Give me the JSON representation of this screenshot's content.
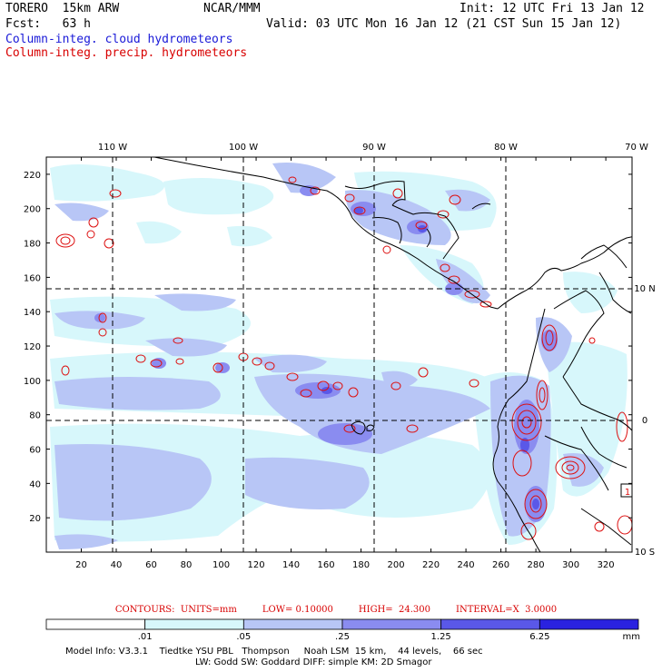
{
  "header": {
    "model": "TORERO  15km ARW",
    "org": "NCAR/MMM",
    "init": "Init: 12 UTC Fri 13 Jan 12",
    "fcst": "Fcst:   63 h",
    "valid": "Valid: 03 UTC Mon 16 Jan 12 (21 CST Sun 15 Jan 12)",
    "field1": "Column-integ. cloud hydrometeors",
    "field2": "Column-integ. precip. hydrometeors"
  },
  "colors": {
    "cloud_text": "#1a1ad8",
    "precip_text": "#d80000",
    "shade_levels": [
      "#ffffff",
      "#d7f7fb",
      "#b8c6f6",
      "#8a8cf0",
      "#5a58e8",
      "#2a22e0"
    ],
    "contour": "#dd1010"
  },
  "axes": {
    "top_lon_labels": [
      "110 W",
      "100 W",
      "90 W",
      "80 W",
      "70 W"
    ],
    "right_lat_labels": [
      "10 N",
      "0",
      "10 S"
    ],
    "left_y_labels": [
      "220",
      "200",
      "180",
      "160",
      "140",
      "120",
      "100",
      "80",
      "60",
      "40",
      "20"
    ],
    "bottom_x_labels": [
      "20",
      "40",
      "60",
      "80",
      "100",
      "120",
      "140",
      "160",
      "180",
      "200",
      "220",
      "240",
      "260",
      "280",
      "300",
      "320"
    ],
    "grid_x": [
      0,
      20,
      40,
      60,
      80,
      100,
      120,
      140,
      160,
      180,
      200,
      220,
      240,
      260,
      280,
      300,
      320,
      340
    ],
    "y_min": 0,
    "y_max": 230,
    "x_min": 0,
    "x_max": 335,
    "box_label": "1"
  },
  "contour_info": {
    "units": "CONTOURS:  UNITS=mm",
    "low": "LOW= 0.10000",
    "high": "HIGH=  24.300",
    "interval": "INTERVAL=X  3.0000"
  },
  "colorbar": {
    "ticks": [
      ".01",
      ".05",
      ".25",
      "1.25",
      "6.25"
    ],
    "unit": "mm"
  },
  "footer": {
    "line1": "Model Info: V3.3.1    Tiedtke YSU PBL   Thompson     Noah LSM  15 km,    44 levels,    66 sec",
    "line2": "LW: Godd SW: Goddard DIFF: simple KM: 2D Smagor"
  }
}
